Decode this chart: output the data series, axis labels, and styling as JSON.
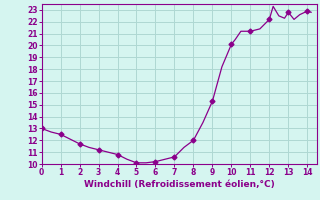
{
  "x": [
    0,
    0.5,
    1,
    1.5,
    2,
    2.5,
    3,
    3.5,
    4,
    4.5,
    5,
    5.5,
    6,
    6.5,
    7,
    7.5,
    8,
    8.5,
    9,
    9.5,
    10,
    10.2,
    10.5,
    11,
    11.5,
    12,
    12.2,
    12.5,
    12.8,
    13,
    13.3,
    13.6,
    14,
    14.2
  ],
  "y": [
    13.0,
    12.7,
    12.5,
    12.1,
    11.7,
    11.4,
    11.2,
    11.0,
    10.8,
    10.4,
    10.1,
    10.1,
    10.2,
    10.4,
    10.6,
    11.4,
    12.0,
    13.5,
    15.3,
    18.2,
    20.1,
    20.5,
    21.2,
    21.2,
    21.4,
    22.2,
    23.3,
    22.5,
    22.3,
    22.8,
    22.2,
    22.6,
    22.9,
    22.8
  ],
  "marker_x": [
    0,
    1,
    2,
    3,
    4,
    5,
    6,
    7,
    8,
    9,
    10,
    11,
    12,
    13,
    14
  ],
  "marker_y": [
    13.0,
    12.5,
    11.7,
    11.2,
    10.8,
    10.1,
    10.2,
    10.6,
    12.0,
    15.3,
    20.1,
    21.2,
    22.2,
    22.8,
    22.9
  ],
  "line_color": "#8b008b",
  "marker_color": "#8b008b",
  "marker": "D",
  "marker_size": 2.5,
  "background_color": "#d5f5f0",
  "grid_color": "#aed8d3",
  "xlabel": "Windchill (Refroidissement éolien,°C)",
  "xlabel_color": "#8b008b",
  "tick_color": "#8b008b",
  "xlim": [
    0,
    14.5
  ],
  "ylim": [
    10,
    23.5
  ],
  "xticks": [
    0,
    1,
    2,
    3,
    4,
    5,
    6,
    7,
    8,
    9,
    10,
    11,
    12,
    13,
    14
  ],
  "yticks": [
    10,
    11,
    12,
    13,
    14,
    15,
    16,
    17,
    18,
    19,
    20,
    21,
    22,
    23
  ],
  "spine_color": "#8b008b"
}
